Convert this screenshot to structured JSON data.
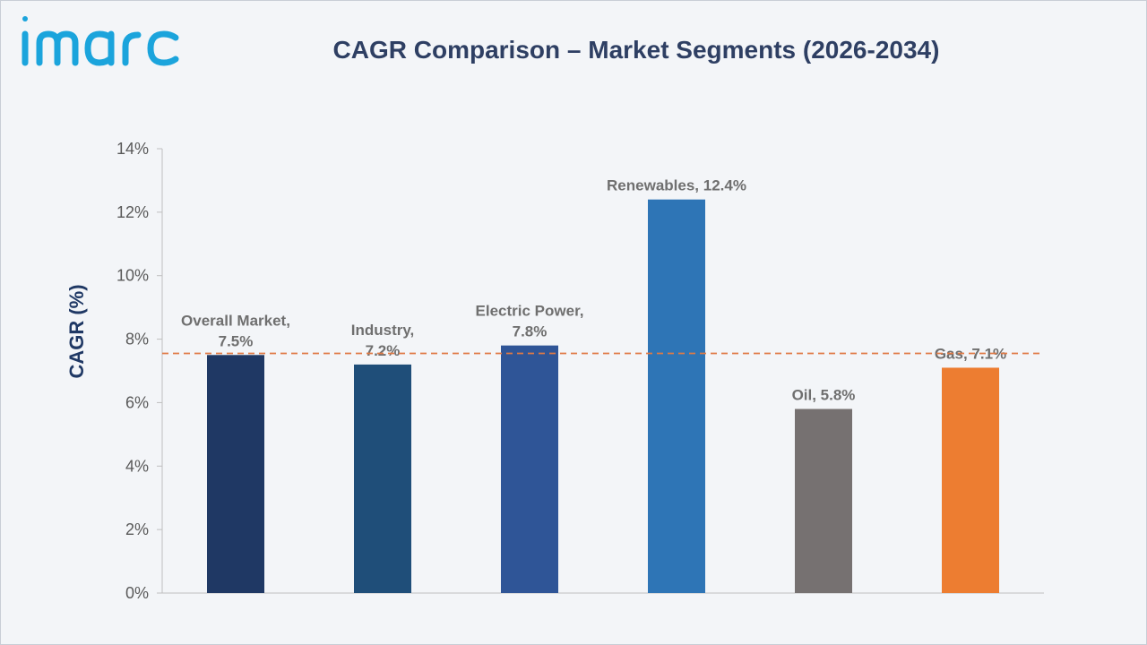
{
  "brand": {
    "logo_text": "imarc",
    "logo_color": "#1ba4dc"
  },
  "chart_data": {
    "type": "bar",
    "title": "CAGR Comparison – Market Segments (2026-2034)",
    "ylabel": "CAGR (%)",
    "xlabel": "",
    "ylim": [
      0,
      14
    ],
    "yticks": [
      0,
      2,
      4,
      6,
      8,
      10,
      12,
      14
    ],
    "ytick_labels": [
      "0%",
      "2%",
      "4%",
      "6%",
      "8%",
      "10%",
      "12%",
      "14%"
    ],
    "categories": [
      "Overall Market",
      "Industry",
      "Electric Power",
      "Renewables",
      "Oil",
      "Gas"
    ],
    "values": [
      7.5,
      7.2,
      7.8,
      12.4,
      5.8,
      7.1
    ],
    "data_labels": [
      [
        "Overall Market,",
        "7.5%"
      ],
      [
        "Industry,",
        "7.2%"
      ],
      [
        "Electric Power,",
        "7.8%"
      ],
      [
        "Renewables, 12.4%"
      ],
      [
        "Oil, 5.8%"
      ],
      [
        "Gas, 7.1%"
      ]
    ],
    "bar_colors": [
      "#1f3864",
      "#1f4e79",
      "#2f5597",
      "#2e75b6",
      "#767171",
      "#ed7d31"
    ],
    "reference_line": {
      "value": 7.55,
      "style": "dashed",
      "color": "#e07a45"
    },
    "grid": false,
    "legend": "none"
  }
}
